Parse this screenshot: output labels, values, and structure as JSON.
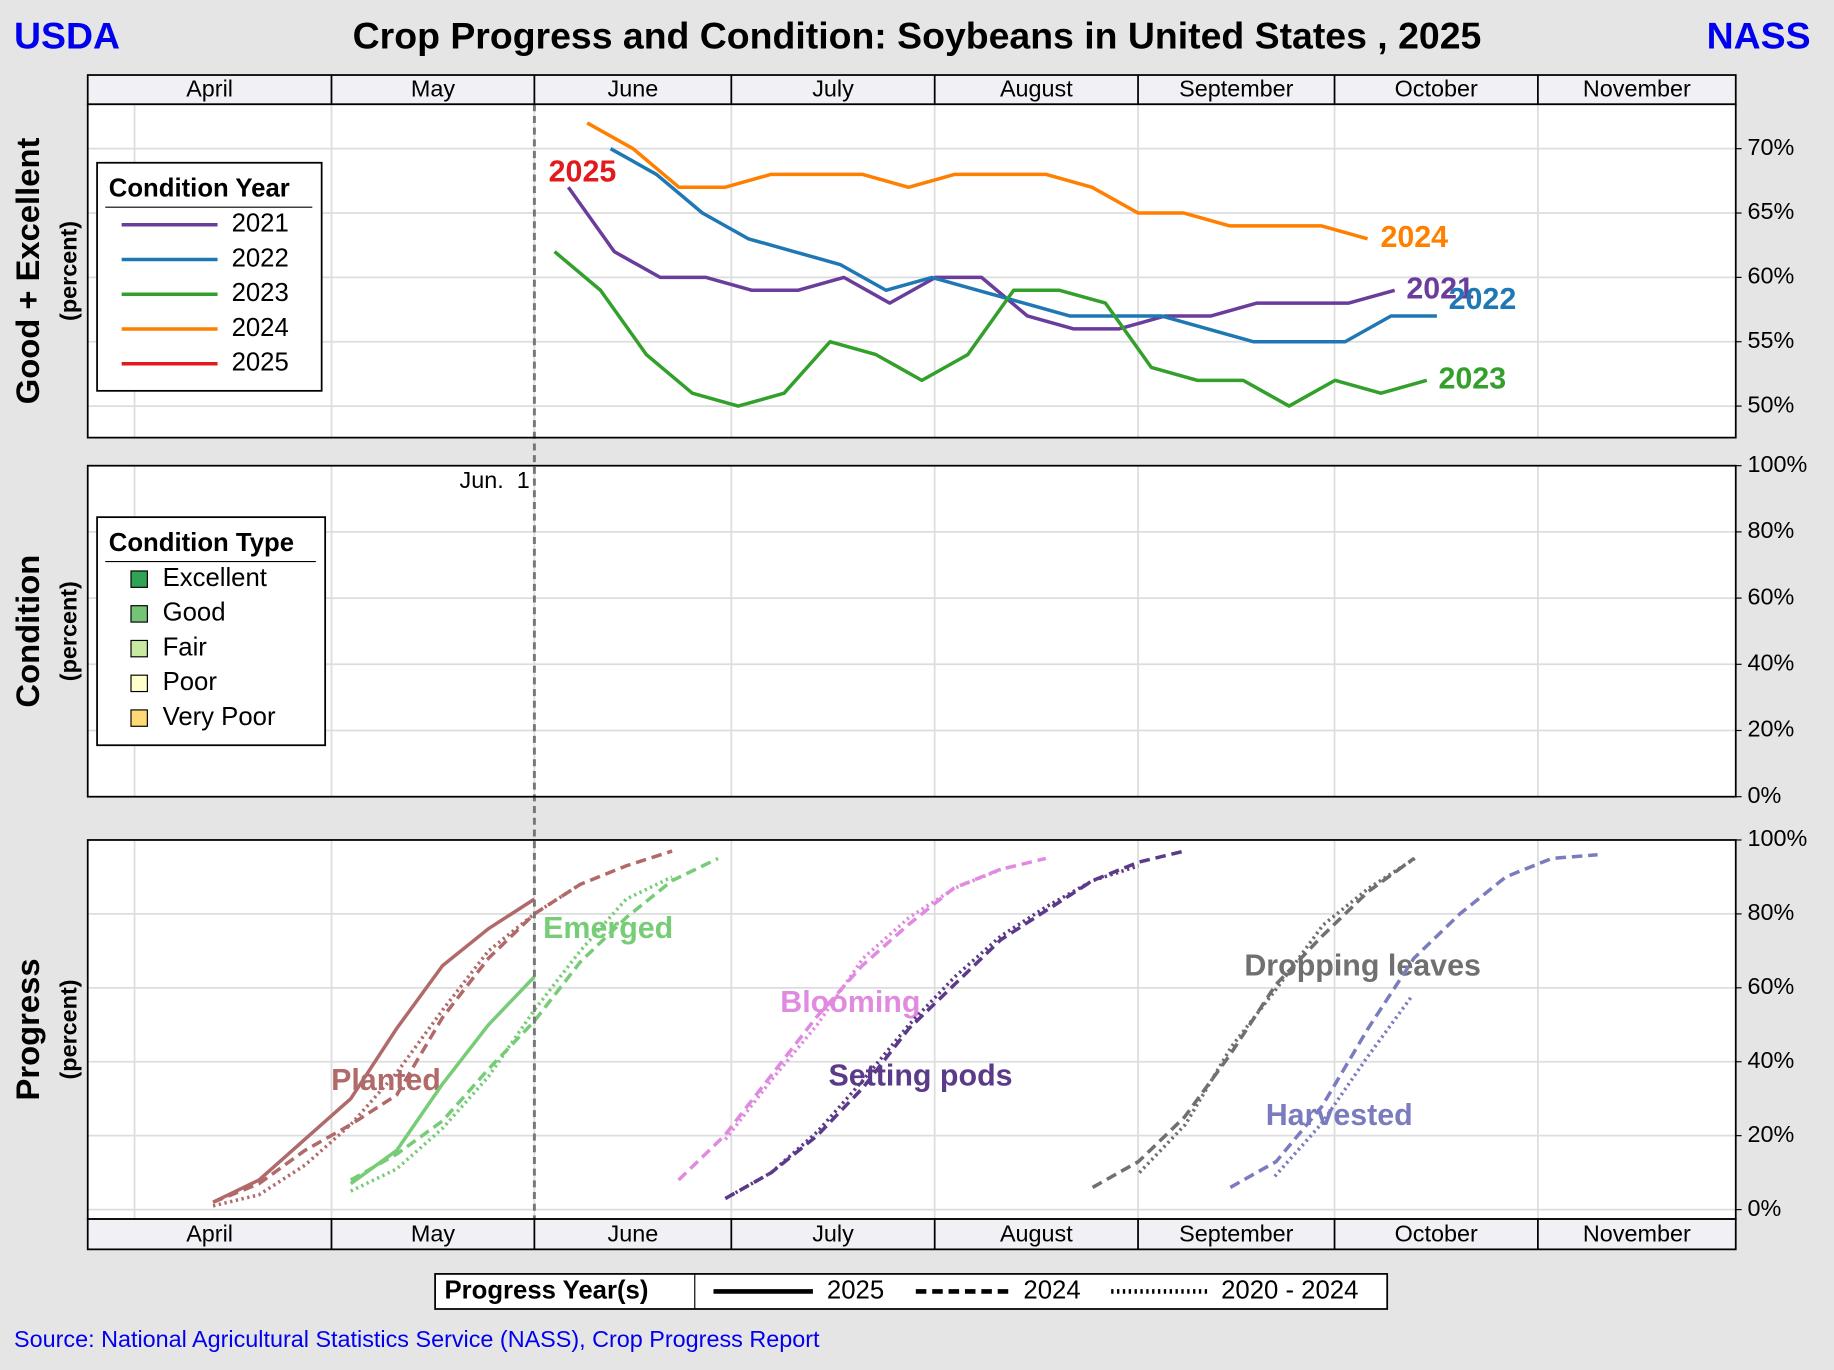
{
  "header": {
    "left": "USDA",
    "title": "Crop Progress and Condition: Soybeans in United States , 2025",
    "right": "NASS"
  },
  "source": "Source: National Agricultural Statistics Service (NASS), Crop Progress Report",
  "report_date": {
    "label": "Jun.  1",
    "x": 8.71
  },
  "x_axis": {
    "xlim": [
      -1.02,
      34.88
    ],
    "xticks": [
      {
        "value": 0,
        "label": "April"
      },
      {
        "value": 4.29,
        "label": "May"
      },
      {
        "value": 8.71,
        "label": "June"
      },
      {
        "value": 13,
        "label": "July"
      },
      {
        "value": 17.43,
        "label": "August"
      },
      {
        "value": 21.86,
        "label": "September"
      },
      {
        "value": 26.14,
        "label": "October"
      },
      {
        "value": 30.57,
        "label": "November"
      }
    ]
  },
  "chart_data": [
    {
      "type": "line",
      "ylabel": "Good + Excellent",
      "ysublabel": "(percent)",
      "legend_title": "Condition Year",
      "ylim": [
        47.55,
        73.45
      ],
      "grid": true,
      "yticks": [
        {
          "value": 50,
          "label": "50%"
        },
        {
          "value": 55,
          "label": "55%"
        },
        {
          "value": 60,
          "label": "60%"
        },
        {
          "value": 65,
          "label": "65%"
        },
        {
          "value": 70,
          "label": "70%"
        }
      ],
      "series": [
        {
          "name": "2021",
          "color": "#6a3d9a",
          "x": [
            9.45,
            10.45,
            11.45,
            12.45,
            13.45,
            14.45,
            15.45,
            16.45,
            17.45,
            18.45,
            19.45,
            20.45,
            21.45,
            22.45,
            23.45,
            24.45,
            25.45,
            26.45,
            27.45
          ],
          "values": [
            67,
            62,
            60,
            60,
            59,
            59,
            60,
            58,
            60,
            60,
            57,
            56,
            56,
            57,
            57,
            58,
            58,
            58,
            59
          ]
        },
        {
          "name": "2022",
          "color": "#1f78b4",
          "x": [
            10.37,
            11.37,
            12.37,
            13.37,
            14.37,
            15.37,
            16.37,
            17.37,
            18.37,
            19.37,
            20.37,
            21.37,
            22.37,
            23.37,
            24.37,
            25.37,
            26.37,
            27.37,
            28.37
          ],
          "values": [
            70,
            68,
            65,
            63,
            62,
            61,
            59,
            60,
            59,
            58,
            57,
            57,
            57,
            56,
            55,
            55,
            55,
            57,
            57
          ]
        },
        {
          "name": "2023",
          "color": "#33a02c",
          "x": [
            9.15,
            10.15,
            11.15,
            12.15,
            13.15,
            14.15,
            15.15,
            16.15,
            17.15,
            18.15,
            19.15,
            20.15,
            21.15,
            22.15,
            23.15,
            24.15,
            25.15,
            26.15,
            27.15,
            28.15
          ],
          "values": [
            62,
            59,
            54,
            51,
            50,
            51,
            55,
            54,
            52,
            54,
            59,
            59,
            58,
            53,
            52,
            52,
            50,
            52,
            51,
            52
          ]
        },
        {
          "name": "2024",
          "color": "#ff7f00",
          "x": [
            9.86,
            10.86,
            11.86,
            12.86,
            13.86,
            14.86,
            15.86,
            16.86,
            17.86,
            18.86,
            19.86,
            20.86,
            21.86,
            22.86,
            23.86,
            24.86,
            25.86,
            26.86
          ],
          "values": [
            72,
            70,
            67,
            67,
            68,
            68,
            68,
            67,
            68,
            68,
            68,
            67,
            65,
            65,
            64,
            64,
            64,
            63
          ]
        },
        {
          "name": "2025",
          "color": "#e31a1c",
          "x": [],
          "values": []
        }
      ]
    },
    {
      "type": "bar",
      "stacked": true,
      "ylabel": "Condition",
      "ysublabel": "(percent)",
      "legend_title": "Condition Type",
      "ylim": [
        0,
        100
      ],
      "grid": true,
      "yticks": [
        {
          "value": 0,
          "label": "0%"
        },
        {
          "value": 20,
          "label": "20%"
        },
        {
          "value": 40,
          "label": "40%"
        },
        {
          "value": 60,
          "label": "60%"
        },
        {
          "value": 80,
          "label": "80%"
        },
        {
          "value": 100,
          "label": "100%"
        }
      ],
      "series": [
        {
          "name": "Excellent",
          "color": "#31a354",
          "values": []
        },
        {
          "name": "Good",
          "color": "#74c476",
          "values": []
        },
        {
          "name": "Fair",
          "color": "#c7e9a0",
          "values": []
        },
        {
          "name": "Poor",
          "color": "#ffffcc",
          "values": []
        },
        {
          "name": "Very Poor",
          "color": "#fed976",
          "values": []
        }
      ]
    },
    {
      "type": "progress",
      "ylabel": "Progress",
      "ysublabel": "(percent)",
      "legend_title": "Progress Year(s)",
      "ylim": [
        -2.53,
        100
      ],
      "grid": true,
      "yticks": [
        {
          "value": 0,
          "label": "0%"
        },
        {
          "value": 20,
          "label": "20%"
        },
        {
          "value": 40,
          "label": "40%"
        },
        {
          "value": 60,
          "label": "60%"
        },
        {
          "value": 80,
          "label": "80%"
        },
        {
          "value": 100,
          "label": "100%"
        }
      ],
      "styles": [
        {
          "name": "2025",
          "dash": "solid"
        },
        {
          "name": "2024",
          "dash": "dashed"
        },
        {
          "name": "2020 - 2024",
          "dash": "dotted"
        }
      ],
      "series": [
        {
          "name": "Planted",
          "color": "#b06a6a",
          "lines": [
            {
              "x": [
                1.71,
                2.71,
                3.71,
                4.71,
                5.71,
                6.71,
                7.71,
                8.71
              ],
              "values": [
                2,
                8,
                19,
                30,
                49,
                66,
                76,
                84
              ]
            },
            {
              "x": [
                1.71,
                2.71,
                3.71,
                4.71,
                5.71,
                6.71,
                7.71,
                8.71,
                9.71,
                10.71,
                11.71
              ],
              "values": [
                2,
                7,
                16,
                23,
                31,
                52,
                68,
                80,
                88,
                93,
                97
              ]
            },
            {
              "x": [
                1.71,
                2.71,
                3.71,
                4.71,
                5.71,
                6.71,
                7.71,
                8.71,
                9.71
              ],
              "values": [
                1,
                4,
                12,
                23,
                37,
                54,
                70,
                80,
                88
              ]
            }
          ]
        },
        {
          "name": "Emerged",
          "color": "#77cc77",
          "lines": [
            {
              "x": [
                4.71,
                5.71,
                6.71,
                7.71,
                8.71
              ],
              "values": [
                7,
                16,
                34,
                50,
                63
              ]
            },
            {
              "x": [
                4.71,
                5.71,
                6.71,
                7.71,
                8.71,
                9.71,
                10.71,
                11.71,
                12.71
              ],
              "values": [
                8,
                15,
                24,
                38,
                51,
                67,
                79,
                89,
                95
              ]
            },
            {
              "x": [
                4.71,
                5.71,
                6.71,
                7.71,
                8.71,
                9.71,
                10.71,
                11.71
              ],
              "values": [
                5,
                11,
                22,
                36,
                54,
                70,
                84,
                90
              ]
            }
          ]
        },
        {
          "name": "Blooming",
          "color": "#e08ae0",
          "lines": [
            null,
            {
              "x": [
                11.85,
                12.85,
                13.85,
                14.85,
                15.85,
                16.85,
                17.85,
                18.85,
                19.85
              ],
              "values": [
                8,
                20,
                36,
                52,
                66,
                77,
                87,
                92,
                95
              ]
            },
            {
              "x": [
                12.87,
                13.87,
                14.87,
                15.87,
                16.87,
                17.87,
                18.87
              ],
              "values": [
                19,
                35,
                50,
                68,
                79,
                87,
                92
              ]
            }
          ]
        },
        {
          "name": "Setting pods",
          "color": "#5b3a8a",
          "lines": [
            null,
            {
              "x": [
                12.87,
                13.87,
                14.87,
                15.87,
                16.87,
                17.87,
                18.87,
                19.87,
                20.87,
                21.87,
                22.87
              ],
              "values": [
                3,
                10,
                20,
                33,
                49,
                61,
                73,
                81,
                89,
                94,
                97
              ]
            },
            {
              "x": [
                12.87,
                13.87,
                14.87,
                15.87,
                16.87,
                17.87,
                18.87,
                19.87,
                20.87,
                21.87
              ],
              "values": [
                3,
                10,
                21,
                35,
                50,
                63,
                74,
                82,
                89,
                93
              ]
            }
          ]
        },
        {
          "name": "Dropping leaves",
          "color": "#707070",
          "lines": [
            null,
            {
              "x": [
                20.87,
                21.87,
                22.87,
                23.87,
                24.87,
                25.87,
                26.87,
                27.87
              ],
              "values": [
                6,
                13,
                25,
                42,
                61,
                74,
                86,
                95
              ]
            },
            {
              "x": [
                21.89,
                22.89,
                23.89,
                24.89,
                25.89,
                26.89,
                27.89
              ],
              "values": [
                10,
                23,
                44,
                60,
                77,
                87,
                95
              ]
            }
          ]
        },
        {
          "name": "Harvested",
          "color": "#7b7bbf",
          "lines": [
            null,
            {
              "x": [
                23.87,
                24.87,
                25.87,
                26.87,
                27.87,
                28.87,
                29.87,
                30.87,
                31.87
              ],
              "values": [
                6,
                13,
                28,
                49,
                68,
                80,
                90,
                95,
                96
              ]
            },
            {
              "x": [
                24.84,
                25.84,
                26.84,
                27.84
              ],
              "values": [
                9,
                23,
                41,
                58
              ]
            }
          ]
        }
      ]
    }
  ]
}
